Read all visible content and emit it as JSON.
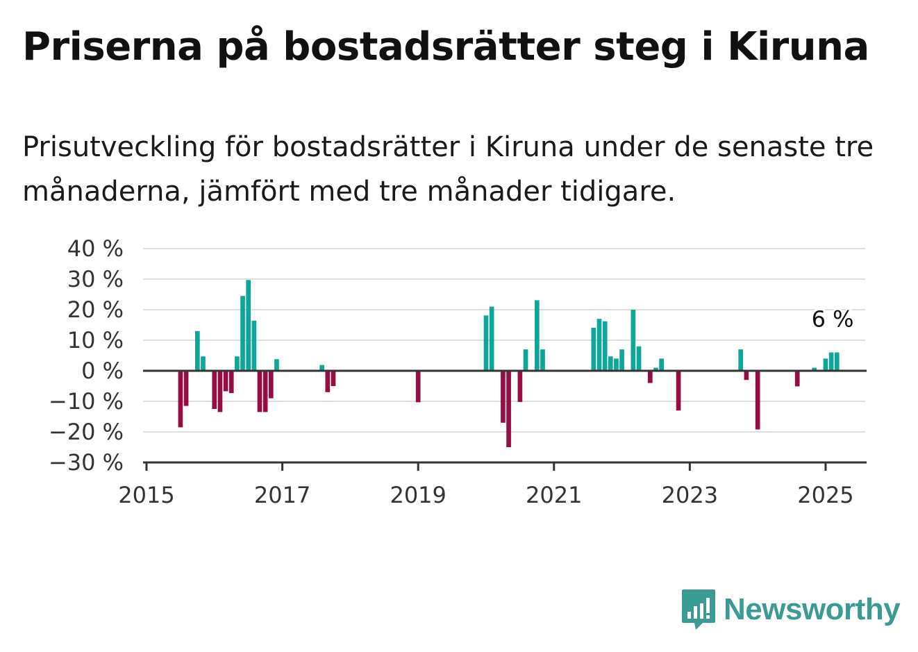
{
  "title": "Priserna på bostadsrätter steg i Kiruna",
  "subtitle": "Prisutveckling för bostadsrätter i Kiruna under de senaste tre månaderna, jämfört med tre månader tidigare.",
  "brand": {
    "name": "Newsworthy",
    "icon": "newsworthy-logo-icon"
  },
  "colors": {
    "positive": "#0ea59b",
    "negative": "#960c44",
    "grid": "#dddddd",
    "axis": "#333333",
    "brand": "#3a9a94"
  },
  "chart_data": {
    "type": "bar",
    "title": "Priserna på bostadsrätter steg i Kiruna",
    "subtitle": "Prisutveckling för bostadsrätter i Kiruna under de senaste tre månaderna, jämfört med tre månader tidigare.",
    "xlabel": "",
    "ylabel": "",
    "unit": "%",
    "ylim": [
      -30,
      40
    ],
    "yticks": [
      40,
      30,
      20,
      10,
      0,
      -10,
      -20,
      -30
    ],
    "ytick_labels": [
      "40 %",
      "30 %",
      "20 %",
      "10 %",
      "0 %",
      "−10 %",
      "−20 %",
      "−30 %"
    ],
    "xlim": [
      "2015-01",
      "2025-08"
    ],
    "xticks": [
      "2015-01",
      "2017-01",
      "2019-01",
      "2021-01",
      "2023-01",
      "2025-01"
    ],
    "xtick_labels": [
      "2015",
      "2017",
      "2019",
      "2021",
      "2023",
      "2025"
    ],
    "grid": true,
    "annotation": {
      "x": "2025-02",
      "label": "6 %"
    },
    "points": [
      {
        "x": "2015-07",
        "y": -18.5
      },
      {
        "x": "2015-08",
        "y": -11.5
      },
      {
        "x": "2015-10",
        "y": 13
      },
      {
        "x": "2015-11",
        "y": 4.7
      },
      {
        "x": "2016-01",
        "y": -12.5
      },
      {
        "x": "2016-02",
        "y": -13.5
      },
      {
        "x": "2016-03",
        "y": -6.7
      },
      {
        "x": "2016-04",
        "y": -7.3
      },
      {
        "x": "2016-05",
        "y": 4.7
      },
      {
        "x": "2016-06",
        "y": 24.5
      },
      {
        "x": "2016-07",
        "y": 29.7
      },
      {
        "x": "2016-08",
        "y": 16.4
      },
      {
        "x": "2016-09",
        "y": -13.5
      },
      {
        "x": "2016-10",
        "y": -13.5
      },
      {
        "x": "2016-11",
        "y": -9
      },
      {
        "x": "2016-12",
        "y": 3.8
      },
      {
        "x": "2017-08",
        "y": 1.9
      },
      {
        "x": "2017-09",
        "y": -7
      },
      {
        "x": "2017-10",
        "y": -5
      },
      {
        "x": "2019-01",
        "y": -10.3
      },
      {
        "x": "2020-01",
        "y": 18.1
      },
      {
        "x": "2020-02",
        "y": 21
      },
      {
        "x": "2020-04",
        "y": -17
      },
      {
        "x": "2020-05",
        "y": -25
      },
      {
        "x": "2020-07",
        "y": -10.2
      },
      {
        "x": "2020-08",
        "y": 7
      },
      {
        "x": "2020-10",
        "y": 23.1
      },
      {
        "x": "2020-11",
        "y": 7
      },
      {
        "x": "2021-08",
        "y": 14.1
      },
      {
        "x": "2021-09",
        "y": 17
      },
      {
        "x": "2021-10",
        "y": 16.2
      },
      {
        "x": "2021-11",
        "y": 4.7
      },
      {
        "x": "2021-12",
        "y": 4
      },
      {
        "x": "2022-01",
        "y": 7
      },
      {
        "x": "2022-03",
        "y": 20
      },
      {
        "x": "2022-04",
        "y": 8
      },
      {
        "x": "2022-06",
        "y": -4
      },
      {
        "x": "2022-07",
        "y": 1
      },
      {
        "x": "2022-08",
        "y": 4
      },
      {
        "x": "2022-11",
        "y": -13
      },
      {
        "x": "2023-10",
        "y": 7
      },
      {
        "x": "2023-11",
        "y": -3
      },
      {
        "x": "2024-01",
        "y": -19.2
      },
      {
        "x": "2024-08",
        "y": -5.1
      },
      {
        "x": "2024-11",
        "y": 1
      },
      {
        "x": "2025-01",
        "y": 4
      },
      {
        "x": "2025-02",
        "y": 6
      },
      {
        "x": "2025-03",
        "y": 6
      }
    ]
  }
}
